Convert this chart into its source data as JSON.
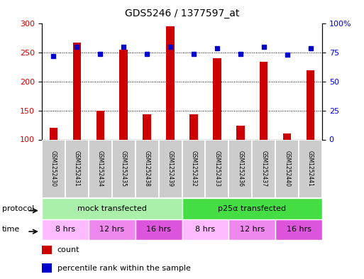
{
  "title": "GDS5246 / 1377597_at",
  "samples": [
    "GSM1252430",
    "GSM1252431",
    "GSM1252434",
    "GSM1252435",
    "GSM1252438",
    "GSM1252439",
    "GSM1252432",
    "GSM1252433",
    "GSM1252436",
    "GSM1252437",
    "GSM1252440",
    "GSM1252441"
  ],
  "counts": [
    120,
    268,
    150,
    255,
    143,
    295,
    143,
    240,
    124,
    234,
    110,
    220
  ],
  "percentiles": [
    72,
    80,
    74,
    80,
    74,
    80,
    74,
    79,
    74,
    80,
    73,
    79
  ],
  "ylim_left": [
    100,
    300
  ],
  "ylim_right": [
    0,
    100
  ],
  "yticks_left": [
    100,
    150,
    200,
    250,
    300
  ],
  "yticks_right": [
    0,
    25,
    50,
    75,
    100
  ],
  "yticklabels_right": [
    "0",
    "25",
    "50",
    "75",
    "100%"
  ],
  "bar_color": "#cc0000",
  "dot_color": "#0000cc",
  "protocol_groups": [
    {
      "label": "mock transfected",
      "start": 0,
      "end": 6,
      "color": "#aaf0aa"
    },
    {
      "label": "p25α transfected",
      "start": 6,
      "end": 12,
      "color": "#44dd44"
    }
  ],
  "time_groups": [
    {
      "label": "8 hrs",
      "start": 0,
      "end": 2,
      "color": "#ffbbff"
    },
    {
      "label": "12 hrs",
      "start": 2,
      "end": 4,
      "color": "#ee88ee"
    },
    {
      "label": "16 hrs",
      "start": 4,
      "end": 6,
      "color": "#dd55dd"
    },
    {
      "label": "8 hrs",
      "start": 6,
      "end": 8,
      "color": "#ffbbff"
    },
    {
      "label": "12 hrs",
      "start": 8,
      "end": 10,
      "color": "#ee88ee"
    },
    {
      "label": "16 hrs",
      "start": 10,
      "end": 12,
      "color": "#dd55dd"
    }
  ],
  "legend_count_color": "#cc0000",
  "legend_dot_color": "#0000cc",
  "bar_width": 0.35,
  "sample_box_color": "#cccccc",
  "background_color": "#ffffff",
  "grid_dotted_vals": [
    150,
    200,
    250
  ]
}
